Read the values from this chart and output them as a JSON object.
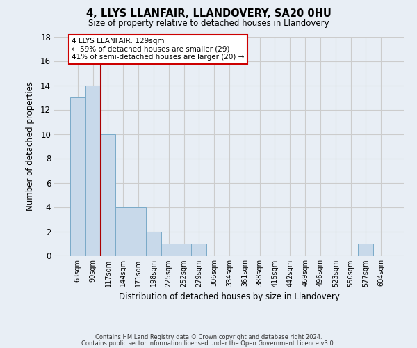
{
  "title1": "4, LLYS LLANFAIR, LLANDOVERY, SA20 0HU",
  "title2": "Size of property relative to detached houses in Llandovery",
  "xlabel": "Distribution of detached houses by size in Llandovery",
  "ylabel": "Number of detached properties",
  "bin_labels": [
    "63sqm",
    "90sqm",
    "117sqm",
    "144sqm",
    "171sqm",
    "198sqm",
    "225sqm",
    "252sqm",
    "279sqm",
    "306sqm",
    "334sqm",
    "361sqm",
    "388sqm",
    "415sqm",
    "442sqm",
    "469sqm",
    "496sqm",
    "523sqm",
    "550sqm",
    "577sqm",
    "604sqm"
  ],
  "bar_values": [
    13,
    14,
    10,
    4,
    4,
    2,
    1,
    1,
    1,
    0,
    0,
    0,
    0,
    0,
    0,
    0,
    0,
    0,
    0,
    1,
    0
  ],
  "bar_color": "#c8d9ea",
  "bar_edge_color": "#7aaac8",
  "bar_edge_width": 0.7,
  "ylim": [
    0,
    18
  ],
  "yticks": [
    0,
    2,
    4,
    6,
    8,
    10,
    12,
    14,
    16,
    18
  ],
  "red_line_color": "#aa0000",
  "annotation_title": "4 LLYS LLANFAIR: 129sqm",
  "annotation_line1": "← 59% of detached houses are smaller (29)",
  "annotation_line2": "41% of semi-detached houses are larger (20) →",
  "annotation_box_facecolor": "#ffffff",
  "annotation_box_edgecolor": "#cc0000",
  "grid_color": "#cccccc",
  "bg_color": "#e8eef5",
  "footnote1": "Contains HM Land Registry data © Crown copyright and database right 2024.",
  "footnote2": "Contains public sector information licensed under the Open Government Licence v3.0."
}
